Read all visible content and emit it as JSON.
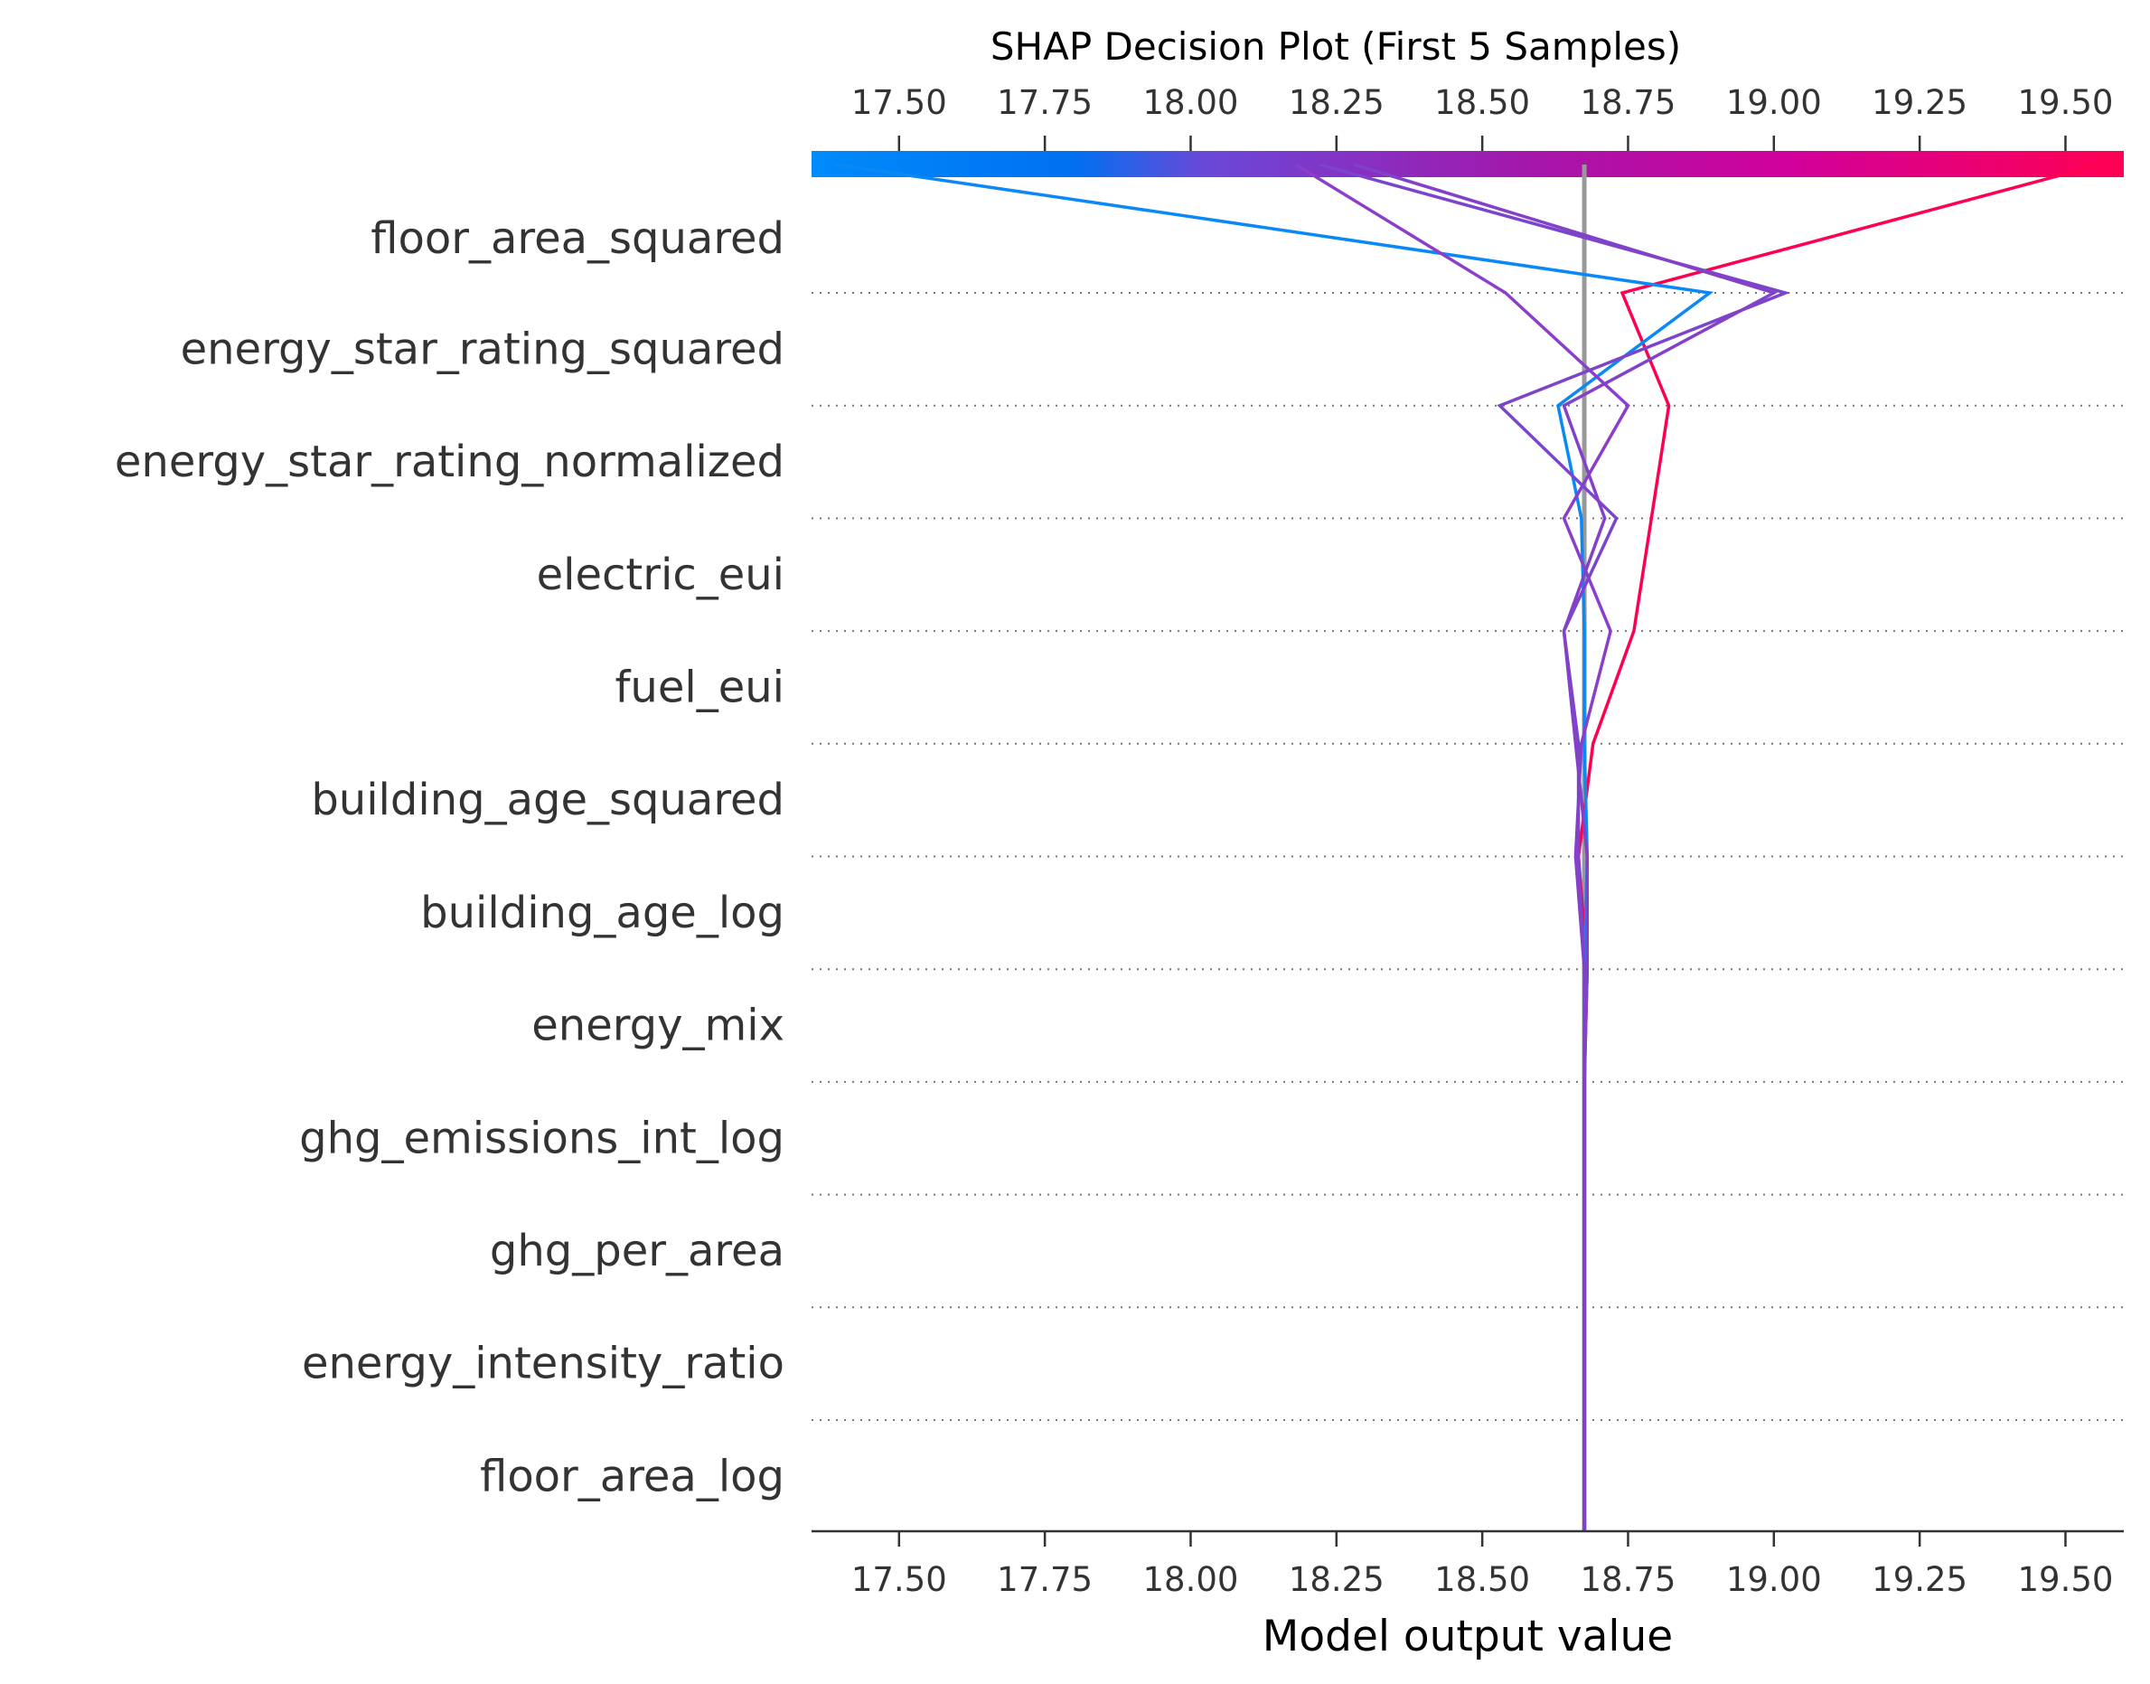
{
  "chart_data": {
    "type": "line",
    "title": "SHAP Decision Plot (First 5 Samples)",
    "xlabel": "Model output value",
    "xlim": [
      17.35,
      19.6
    ],
    "base_value": 18.675,
    "xticks": [
      17.5,
      17.75,
      18.0,
      18.25,
      18.5,
      18.75,
      19.0,
      19.25,
      19.5
    ],
    "xtick_labels": [
      "17.50",
      "17.75",
      "18.00",
      "18.25",
      "18.50",
      "18.75",
      "19.00",
      "19.25",
      "19.50"
    ],
    "colormap": [
      "#008bfb",
      "#7f3fc4",
      "#ff0051"
    ],
    "features": [
      "floor_area_squared",
      "energy_star_rating_squared",
      "energy_star_rating_normalized",
      "electric_eui",
      "fuel_eui",
      "building_age_squared",
      "building_age_log",
      "energy_mix",
      "ghg_emissions_int_log",
      "ghg_per_area",
      "energy_intensity_ratio",
      "floor_area_log"
    ],
    "series": [
      {
        "color": "#ff0051",
        "prediction": 19.56,
        "values": [
          19.56,
          18.74,
          18.82,
          18.79,
          18.76,
          18.69,
          18.665,
          18.68,
          18.675,
          18.675,
          18.675,
          18.675,
          18.675
        ]
      },
      {
        "color": "#0a88f5",
        "prediction": 17.39,
        "values": [
          17.39,
          18.89,
          18.63,
          18.67,
          18.675,
          18.675,
          18.68,
          18.675,
          18.675,
          18.675,
          18.675,
          18.675,
          18.675
        ]
      },
      {
        "color": "#8a3ec9",
        "prediction": 18.18,
        "values": [
          18.18,
          18.54,
          18.75,
          18.64,
          18.72,
          18.67,
          18.66,
          18.675,
          18.675,
          18.675,
          18.675,
          18.675,
          18.675
        ]
      },
      {
        "color": "#7b44cc",
        "prediction": 18.22,
        "values": [
          18.22,
          19.02,
          18.53,
          18.73,
          18.64,
          18.665,
          18.665,
          18.675,
          18.675,
          18.675,
          18.675,
          18.675,
          18.675
        ]
      },
      {
        "color": "#8340c8",
        "prediction": 18.28,
        "values": [
          18.28,
          19.0,
          18.64,
          18.71,
          18.64,
          18.66,
          18.68,
          18.68,
          18.675,
          18.675,
          18.675,
          18.675,
          18.675
        ]
      }
    ]
  }
}
